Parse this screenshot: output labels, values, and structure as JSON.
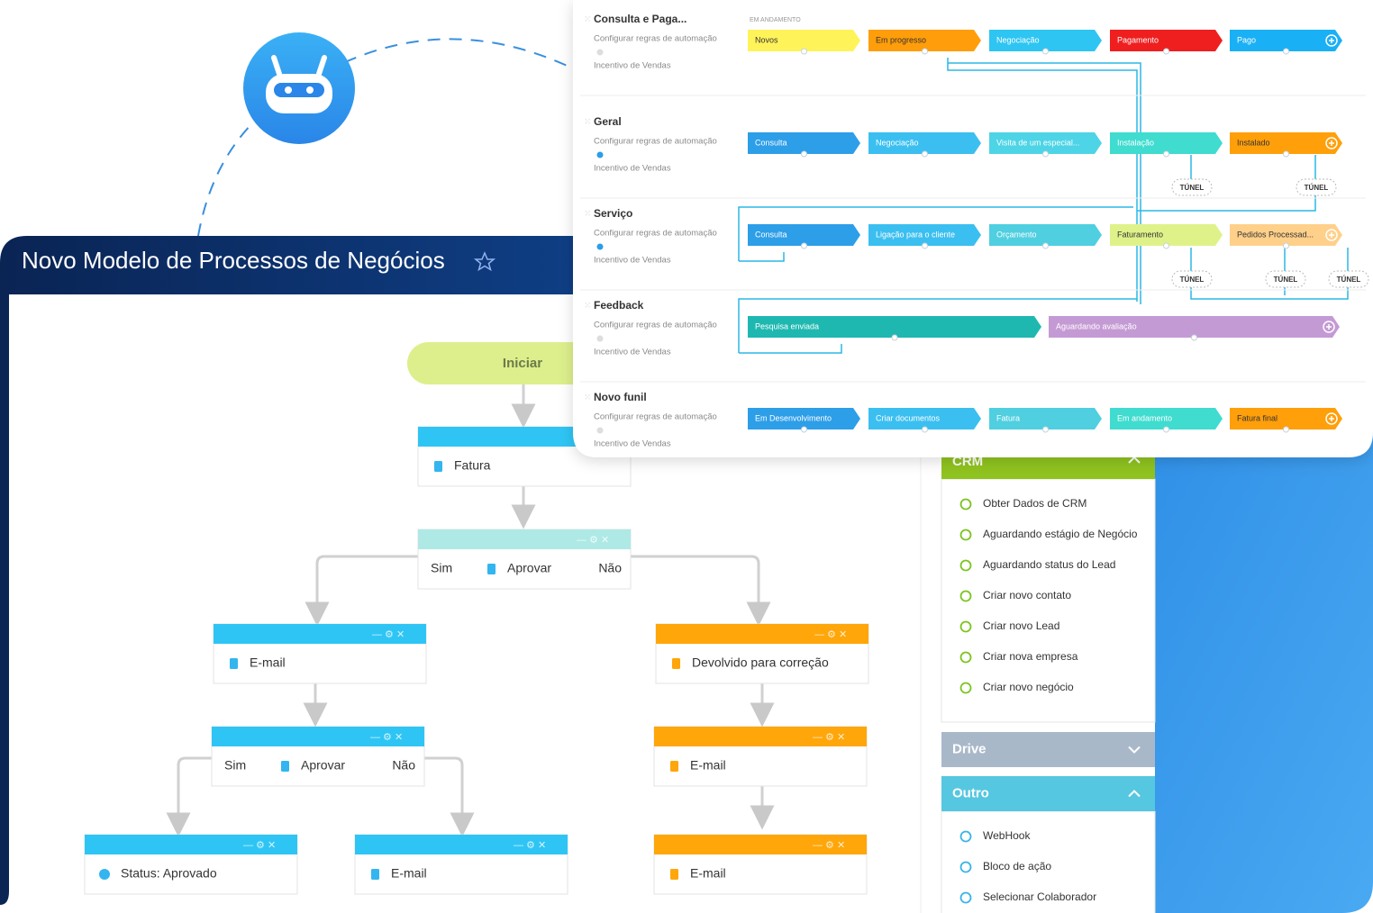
{
  "header": {
    "title": "Novo Modelo de Processos de Negócios"
  },
  "flow": {
    "start": "Iniciar",
    "nodes": [
      {
        "label": "Fatura",
        "color": "#2ec5f5"
      },
      {
        "label": "Aprovar",
        "color": "#aee9e6",
        "yes": "Sim",
        "no": "Não"
      },
      {
        "label": "E-mail",
        "color": "#2ec5f5"
      },
      {
        "label": "Devolvido para correção",
        "color": "#ffa60a"
      },
      {
        "label": "Aprovar",
        "color": "#2ec5f5",
        "yes": "Sim",
        "no": "Não"
      },
      {
        "label": "E-mail",
        "color": "#ffa60a"
      },
      {
        "label": "Status: Aprovado",
        "color": "#2ec5f5"
      },
      {
        "label": "E-mail",
        "color": "#2ec5f5"
      },
      {
        "label": "E-mail",
        "color": "#ffa60a"
      }
    ]
  },
  "sidebar": {
    "sections": [
      {
        "title": "CRM",
        "color": "#8fc31f",
        "items": [
          "Obter Dados de CRM",
          "Aguardando estágio de Negócio",
          "Aguardando status do Lead",
          "Criar novo contato",
          "Criar novo Lead",
          "Criar nova empresa",
          "Criar novo negócio"
        ]
      },
      {
        "title": "Drive",
        "color": "#a9b8c9",
        "items": []
      },
      {
        "title": "Outro",
        "color": "#56c7e0",
        "items": [
          "WebHook",
          "Bloco de ação",
          "Selecionar Colaborador"
        ]
      }
    ]
  },
  "pipelines": {
    "column_label": "EM ANDAMENTO",
    "tunnels": [
      "TÚNEL",
      "TÚNEL",
      "TÚNEL",
      "TÚNEL",
      "TÚNEL"
    ],
    "rows": [
      {
        "name": "Consulta e Paga...",
        "automation": "Configurar regras de automação",
        "incentive": "Incentivo de Vendas",
        "stages": [
          {
            "label": "Novos",
            "color": "#fff35a"
          },
          {
            "label": "Em progresso",
            "color": "#ff9d0a"
          },
          {
            "label": "Negociação",
            "color": "#2ec5f2"
          },
          {
            "label": "Pagamento",
            "color": "#ef1f1f"
          },
          {
            "label": "Pago",
            "color": "#1ab0f5"
          }
        ]
      },
      {
        "name": "Geral",
        "automation": "Configurar regras de automação",
        "incentive": "Incentivo de Vendas",
        "stages": [
          {
            "label": "Consulta",
            "color": "#2d9ee8"
          },
          {
            "label": "Negociação",
            "color": "#3bbff0"
          },
          {
            "label": "Visita de um especial...",
            "color": "#4dd4e6"
          },
          {
            "label": "Instalação",
            "color": "#3fdccf"
          },
          {
            "label": "Instalado",
            "color": "#ff9f0a"
          }
        ]
      },
      {
        "name": "Serviço",
        "automation": "Configurar regras de automação",
        "incentive": "Incentivo de Vendas",
        "stages": [
          {
            "label": "Consulta",
            "color": "#2d9ee8"
          },
          {
            "label": "Ligação para o cliente",
            "color": "#3bbff0"
          },
          {
            "label": "Orçamento",
            "color": "#4fcfe0"
          },
          {
            "label": "Faturamento",
            "color": "#dff28a"
          },
          {
            "label": "Pedidos Processad...",
            "color": "#ffd08a"
          }
        ]
      },
      {
        "name": "Feedback",
        "automation": "Configurar regras de automação",
        "incentive": "Incentivo de Vendas",
        "stages": [
          {
            "label": "Pesquisa enviada",
            "color": "#1fb8b0"
          },
          {
            "label": "Aguardando avaliação",
            "color": "#c49ad4"
          }
        ]
      },
      {
        "name": "Novo funil",
        "automation": "Configurar regras de automação",
        "incentive": "Incentivo de Vendas",
        "stages": [
          {
            "label": "Em Desenvolvimento",
            "color": "#2d9ee8"
          },
          {
            "label": "Criar documentos",
            "color": "#3bbff0"
          },
          {
            "label": "Fatura",
            "color": "#4fcfe0"
          },
          {
            "label": "Em andamento",
            "color": "#3fdccf"
          },
          {
            "label": "Fatura final",
            "color": "#ff9f0a"
          }
        ]
      }
    ]
  }
}
